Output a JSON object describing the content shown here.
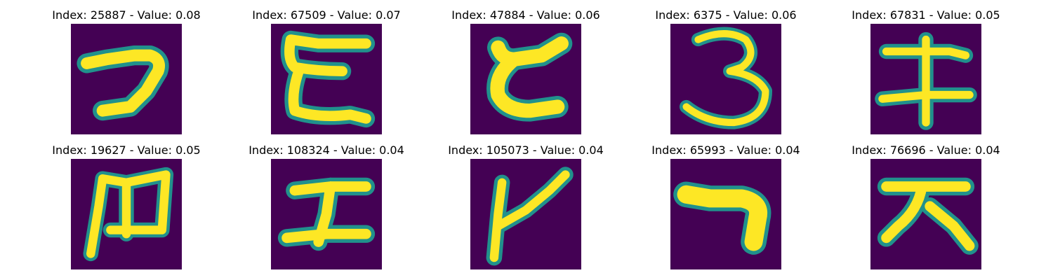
{
  "colors": {
    "background": "#440154",
    "edge": "#21918c",
    "stroke": "#fde725"
  },
  "panels": [
    {
      "title": "Index: 25887 - Value: 0.08",
      "glyph": "hook-shape"
    },
    {
      "title": "Index: 67509 - Value: 0.07",
      "glyph": "e-like-shape"
    },
    {
      "title": "Index: 47884 - Value: 0.06",
      "glyph": "c-like-shape"
    },
    {
      "title": "Index: 6375 - Value: 0.06",
      "glyph": "three-shape"
    },
    {
      "title": "Index: 67831 - Value: 0.05",
      "glyph": "double-cross-shape"
    },
    {
      "title": "Index: 19627 - Value: 0.05",
      "glyph": "m-like-shape"
    },
    {
      "title": "Index: 108324 - Value: 0.04",
      "glyph": "i-beam-shape"
    },
    {
      "title": "Index: 105073 - Value: 0.04",
      "glyph": "y-like-shape"
    },
    {
      "title": "Index: 65993 - Value: 0.04",
      "glyph": "bend-shape"
    },
    {
      "title": "Index: 76696 - Value: 0.04",
      "glyph": "da-shape"
    }
  ]
}
